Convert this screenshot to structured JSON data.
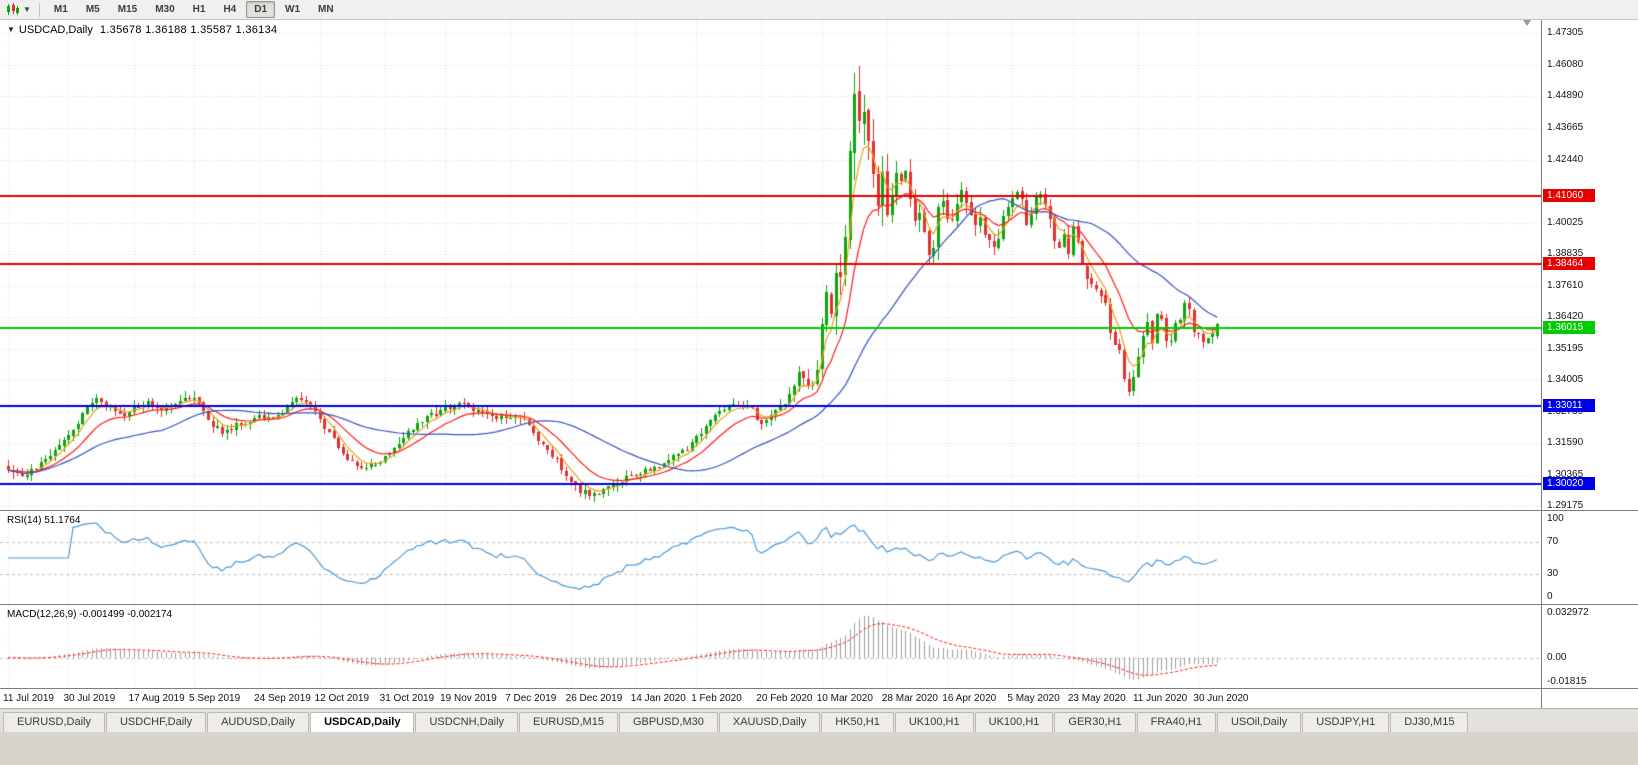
{
  "colors": {
    "bull": "#0da60d",
    "bear": "#e03232",
    "ma_fast": "#e8a31c",
    "ma_mid": "#ff1c1c",
    "ma_slow": "#3a55c4",
    "rsi_line": "#4f9bd5",
    "macd_hist": "#9e9e9e",
    "macd_signal": "#ff1c1c",
    "grid": "#e3e3e3",
    "level_dash": "#c2c2c2",
    "tick": "#6a6a6a"
  },
  "toolbar": {
    "timeframes": [
      "M1",
      "M5",
      "M15",
      "M30",
      "H1",
      "H4",
      "D1",
      "W1",
      "MN"
    ],
    "active_timeframe": "D1"
  },
  "chart": {
    "title": "USDCAD,Daily",
    "ohlc_text": "1.35678 1.36188 1.35587 1.36134",
    "price_axis_labels": [
      "1.47305",
      "1.46080",
      "1.44890",
      "1.43665",
      "1.42440",
      "1.40025",
      "1.38835",
      "1.37610",
      "1.36420",
      "1.35195",
      "1.34005",
      "1.32780",
      "1.31590",
      "1.30365",
      "1.29175"
    ],
    "hlines": [
      {
        "label": "1.41060",
        "price": 1.4106,
        "color": "#e60000"
      },
      {
        "label": "1.38464",
        "price": 1.38464,
        "color": "#e60000"
      },
      {
        "label": "1.36015",
        "price": 1.36015,
        "color": "#00cc00"
      },
      {
        "label": "1.33011",
        "price": 1.33011,
        "color": "#0000e6"
      },
      {
        "label": "1.30020",
        "price": 1.3002,
        "color": "#0000e6"
      }
    ]
  },
  "indicators": {
    "rsi": {
      "title": "RSI(14) 51.1764",
      "period": 14,
      "current": 51.1764,
      "levels": [
        "100",
        "70",
        "30",
        "0"
      ],
      "dashed_levels": [
        70,
        30
      ]
    },
    "macd": {
      "title": "MACD(12,26,9) -0.001499 -0.002174",
      "current_macd": -0.001499,
      "current_signal": -0.002174,
      "levels": [
        "0.032972",
        "0.00",
        "-0.01815"
      ]
    }
  },
  "tab_bar": {
    "tabs": [
      "EURUSD,Daily",
      "USDCHF,Daily",
      "AUDUSD,Daily",
      "USDCAD,Daily",
      "USDCNH,Daily",
      "EURUSD,M15",
      "GBPUSD,M30",
      "XAUUSD,Daily",
      "HK50,H1",
      "UK100,H1",
      "UK100,H1",
      "GER30,H1",
      "FRA40,H1",
      "USOil,Daily",
      "USDJPY,H1",
      "DJ30,M15"
    ],
    "active_index": 3
  },
  "chart_data": {
    "type": "candlestick",
    "symbol": "USDCAD",
    "timeframe": "Daily",
    "current_ohlc": {
      "open": 1.35678,
      "high": 1.36188,
      "low": 1.35587,
      "close": 1.36134
    },
    "ylim": [
      1.2902,
      1.4781
    ],
    "candle_count": 261,
    "date_labels": [
      "11 Jul 2019",
      "30 Jul 2019",
      "17 Aug 2019",
      "5 Sep 2019",
      "24 Sep 2019",
      "12 Oct 2019",
      "31 Oct 2019",
      "19 Nov 2019",
      "7 Dec 2019",
      "26 Dec 2019",
      "14 Jan 2020",
      "1 Feb 2020",
      "20 Feb 2020",
      "10 Mar 2020",
      "28 Mar 2020",
      "16 Apr 2020",
      "5 May 2020",
      "23 May 2020",
      "11 Jun 2020",
      "30 Jun 2020"
    ],
    "date_tick_indices": [
      0,
      13,
      27,
      40,
      54,
      67,
      81,
      94,
      108,
      121,
      135,
      148,
      162,
      175,
      189,
      202,
      216,
      229,
      243,
      256
    ],
    "close_keyframes": [
      [
        0,
        1.3065
      ],
      [
        3,
        1.303
      ],
      [
        6,
        1.306
      ],
      [
        10,
        1.313
      ],
      [
        13,
        1.318
      ],
      [
        16,
        1.327
      ],
      [
        19,
        1.332
      ],
      [
        22,
        1.329
      ],
      [
        25,
        1.326
      ],
      [
        27,
        1.329
      ],
      [
        30,
        1.332
      ],
      [
        33,
        1.329
      ],
      [
        36,
        1.331
      ],
      [
        40,
        1.3335
      ],
      [
        43,
        1.324
      ],
      [
        46,
        1.32
      ],
      [
        50,
        1.3235
      ],
      [
        54,
        1.3265
      ],
      [
        57,
        1.3245
      ],
      [
        60,
        1.33
      ],
      [
        63,
        1.333
      ],
      [
        65,
        1.33
      ],
      [
        67,
        1.324
      ],
      [
        70,
        1.318
      ],
      [
        73,
        1.309
      ],
      [
        76,
        1.306
      ],
      [
        79,
        1.3075
      ],
      [
        81,
        1.3105
      ],
      [
        84,
        1.3165
      ],
      [
        88,
        1.323
      ],
      [
        91,
        1.3265
      ],
      [
        94,
        1.329
      ],
      [
        97,
        1.331
      ],
      [
        100,
        1.3285
      ],
      [
        104,
        1.3255
      ],
      [
        108,
        1.326
      ],
      [
        111,
        1.324
      ],
      [
        114,
        1.317
      ],
      [
        117,
        1.311
      ],
      [
        120,
        1.304
      ],
      [
        123,
        1.2975
      ],
      [
        126,
        1.2955
      ],
      [
        129,
        1.299
      ],
      [
        132,
        1.3015
      ],
      [
        135,
        1.3045
      ],
      [
        139,
        1.3065
      ],
      [
        143,
        1.3105
      ],
      [
        146,
        1.3135
      ],
      [
        148,
        1.3185
      ],
      [
        151,
        1.324
      ],
      [
        154,
        1.329
      ],
      [
        157,
        1.331
      ],
      [
        160,
        1.329
      ],
      [
        162,
        1.3225
      ],
      [
        165,
        1.328
      ],
      [
        168,
        1.334
      ],
      [
        170,
        1.343
      ],
      [
        172,
        1.338
      ],
      [
        174,
        1.342
      ],
      [
        175,
        1.36
      ],
      [
        176,
        1.372
      ],
      [
        177,
        1.366
      ],
      [
        178,
        1.381
      ],
      [
        179,
        1.383
      ],
      [
        180,
        1.398
      ],
      [
        181,
        1.424
      ],
      [
        182,
        1.451
      ],
      [
        183,
        1.444
      ],
      [
        184,
        1.442
      ],
      [
        185,
        1.433
      ],
      [
        186,
        1.418
      ],
      [
        187,
        1.406
      ],
      [
        188,
        1.419
      ],
      [
        189,
        1.401
      ],
      [
        190,
        1.409
      ],
      [
        191,
        1.42
      ],
      [
        192,
        1.415
      ],
      [
        193,
        1.419
      ],
      [
        194,
        1.41
      ],
      [
        195,
        1.402
      ],
      [
        196,
        1.403
      ],
      [
        197,
        1.399
      ],
      [
        198,
        1.389
      ],
      [
        199,
        1.391
      ],
      [
        200,
        1.405
      ],
      [
        201,
        1.409
      ],
      [
        202,
        1.404
      ],
      [
        203,
        1.401
      ],
      [
        204,
        1.408
      ],
      [
        205,
        1.415
      ],
      [
        206,
        1.409
      ],
      [
        207,
        1.403
      ],
      [
        208,
        1.398
      ],
      [
        209,
        1.401
      ],
      [
        210,
        1.395
      ],
      [
        211,
        1.393
      ],
      [
        212,
        1.39
      ],
      [
        213,
        1.394
      ],
      [
        214,
        1.402
      ],
      [
        215,
        1.405
      ],
      [
        216,
        1.408
      ],
      [
        217,
        1.413
      ],
      [
        218,
        1.41
      ],
      [
        219,
        1.398
      ],
      [
        220,
        1.403
      ],
      [
        221,
        1.409
      ],
      [
        222,
        1.411
      ],
      [
        223,
        1.406
      ],
      [
        224,
        1.4
      ],
      [
        225,
        1.393
      ],
      [
        226,
        1.391
      ],
      [
        227,
        1.397
      ],
      [
        228,
        1.39
      ],
      [
        229,
        1.399
      ],
      [
        230,
        1.392
      ],
      [
        232,
        1.379
      ],
      [
        234,
        1.376
      ],
      [
        236,
        1.368
      ],
      [
        237,
        1.357
      ],
      [
        238,
        1.352
      ],
      [
        239,
        1.35
      ],
      [
        240,
        1.342
      ],
      [
        241,
        1.3358
      ],
      [
        242,
        1.3415
      ],
      [
        243,
        1.349
      ],
      [
        244,
        1.358
      ],
      [
        245,
        1.361
      ],
      [
        246,
        1.3545
      ],
      [
        247,
        1.364
      ],
      [
        248,
        1.3625
      ],
      [
        249,
        1.3545
      ],
      [
        250,
        1.356
      ],
      [
        251,
        1.363
      ],
      [
        252,
        1.364
      ],
      [
        253,
        1.3685
      ],
      [
        254,
        1.366
      ],
      [
        255,
        1.3576
      ],
      [
        256,
        1.357
      ],
      [
        257,
        1.355
      ],
      [
        258,
        1.3559
      ],
      [
        259,
        1.3575
      ],
      [
        260,
        1.36134
      ]
    ],
    "volatility_keyframes": [
      [
        0,
        0.005
      ],
      [
        160,
        0.005
      ],
      [
        170,
        0.0065
      ],
      [
        176,
        0.012
      ],
      [
        181,
        0.02
      ],
      [
        184,
        0.024
      ],
      [
        188,
        0.016
      ],
      [
        194,
        0.012
      ],
      [
        202,
        0.0095
      ],
      [
        214,
        0.0085
      ],
      [
        228,
        0.0075
      ],
      [
        238,
        0.0085
      ],
      [
        246,
        0.0065
      ],
      [
        260,
        0.005
      ]
    ],
    "moving_averages": [
      {
        "name": "fast",
        "period": 5,
        "type": "ema",
        "color_key": "ma_fast"
      },
      {
        "name": "mid",
        "period": 13,
        "type": "ema",
        "color_key": "ma_mid"
      },
      {
        "name": "slow",
        "period": 34,
        "type": "sma",
        "color_key": "ma_slow"
      }
    ],
    "rsi": {
      "period": 14,
      "range": [
        0,
        100
      ]
    },
    "macd": {
      "fast": 12,
      "slow": 26,
      "signal": 9,
      "ylim": [
        -0.01815,
        0.032972
      ]
    }
  }
}
